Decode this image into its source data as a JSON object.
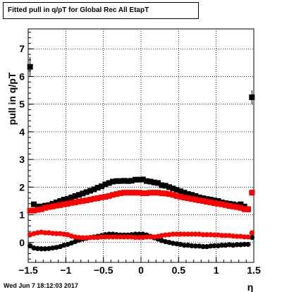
{
  "title": "Fitted pull in q/pT for Global Rec All EtapT",
  "timestamp": "Wed Jun  7 18:12:03 2017",
  "chart_data": {
    "type": "scatter",
    "title": "Fitted pull in q/pT for Global Rec All EtapT",
    "xlabel": "η",
    "ylabel": "pull in q/pT",
    "xlim": [
      -1.5,
      1.5
    ],
    "ylim": [
      -0.72,
      7.72
    ],
    "xticks": [
      -1.5,
      -1,
      -0.5,
      0,
      0.5,
      1,
      1.5
    ],
    "xtick_labels": [
      "−1.5",
      "−1",
      "−0.5",
      "0",
      "0.5",
      "1",
      "1.5"
    ],
    "yticks": [
      0,
      1,
      2,
      3,
      4,
      5,
      6,
      7
    ],
    "ytick_labels": [
      "0",
      "1",
      "2",
      "3",
      "4",
      "5",
      "6",
      "7"
    ],
    "grid": true,
    "series": [
      {
        "color": "#000000",
        "marker": "square",
        "x": [
          -1.475,
          -1.425,
          -1.375,
          -1.325,
          -1.275,
          -1.225,
          -1.175,
          -1.125,
          -1.075,
          -1.025,
          -0.975,
          -0.925,
          -0.875,
          -0.825,
          -0.775,
          -0.725,
          -0.675,
          -0.625,
          -0.575,
          -0.525,
          -0.475,
          -0.425,
          -0.375,
          -0.325,
          -0.275,
          -0.225,
          -0.175,
          -0.125,
          -0.075,
          -0.025,
          0.025,
          0.075,
          0.125,
          0.175,
          0.225,
          0.275,
          0.325,
          0.375,
          0.425,
          0.475,
          0.525,
          0.575,
          0.625,
          0.675,
          0.725,
          0.775,
          0.825,
          0.875,
          0.925,
          0.975,
          1.025,
          1.075,
          1.125,
          1.175,
          1.225,
          1.275,
          1.325,
          1.375,
          1.425,
          1.475
        ],
        "y": [
          6.35,
          1.38,
          1.3,
          1.3,
          1.33,
          1.35,
          1.4,
          1.45,
          1.5,
          1.55,
          1.58,
          1.63,
          1.68,
          1.72,
          1.77,
          1.82,
          1.87,
          1.92,
          1.98,
          2.03,
          2.1,
          2.15,
          2.2,
          2.22,
          2.22,
          2.23,
          2.22,
          2.23,
          2.27,
          2.27,
          2.28,
          2.22,
          2.2,
          2.17,
          2.15,
          2.07,
          2.05,
          2.0,
          1.95,
          1.9,
          1.85,
          1.8,
          1.75,
          1.72,
          1.68,
          1.63,
          1.6,
          1.57,
          1.55,
          1.52,
          1.5,
          1.45,
          1.42,
          1.4,
          1.38,
          1.35,
          1.38,
          1.3,
          1.2,
          5.25
        ],
        "yerr": [
          0.35,
          0.08,
          0.05,
          0.04,
          0.04,
          0.04,
          0.03,
          0.03,
          0.03,
          0.03,
          0.03,
          0.03,
          0.03,
          0.03,
          0.03,
          0.03,
          0.03,
          0.03,
          0.03,
          0.03,
          0.03,
          0.03,
          0.03,
          0.03,
          0.03,
          0.03,
          0.03,
          0.03,
          0.03,
          0.03,
          0.03,
          0.03,
          0.03,
          0.03,
          0.03,
          0.03,
          0.03,
          0.03,
          0.03,
          0.03,
          0.03,
          0.03,
          0.03,
          0.03,
          0.03,
          0.03,
          0.03,
          0.03,
          0.03,
          0.03,
          0.03,
          0.03,
          0.03,
          0.03,
          0.03,
          0.04,
          0.04,
          0.05,
          0.08,
          0.25
        ]
      },
      {
        "color": "#ff0000",
        "marker": "square",
        "x": [
          -1.475,
          -1.425,
          -1.375,
          -1.325,
          -1.275,
          -1.225,
          -1.175,
          -1.125,
          -1.075,
          -1.025,
          -0.975,
          -0.925,
          -0.875,
          -0.825,
          -0.775,
          -0.725,
          -0.675,
          -0.625,
          -0.575,
          -0.525,
          -0.475,
          -0.425,
          -0.375,
          -0.325,
          -0.275,
          -0.225,
          -0.175,
          -0.125,
          -0.075,
          -0.025,
          0.025,
          0.075,
          0.125,
          0.175,
          0.225,
          0.275,
          0.325,
          0.375,
          0.425,
          0.475,
          0.525,
          0.575,
          0.625,
          0.675,
          0.725,
          0.775,
          0.825,
          0.875,
          0.925,
          0.975,
          1.025,
          1.075,
          1.125,
          1.175,
          1.225,
          1.275,
          1.325,
          1.375,
          1.425,
          1.475
        ],
        "y": [
          1.15,
          1.15,
          1.18,
          1.2,
          1.25,
          1.28,
          1.3,
          1.33,
          1.35,
          1.38,
          1.4,
          1.43,
          1.45,
          1.48,
          1.5,
          1.52,
          1.55,
          1.58,
          1.6,
          1.63,
          1.65,
          1.68,
          1.72,
          1.75,
          1.78,
          1.8,
          1.8,
          1.8,
          1.8,
          1.8,
          1.78,
          1.78,
          1.8,
          1.8,
          1.8,
          1.78,
          1.77,
          1.75,
          1.72,
          1.68,
          1.65,
          1.62,
          1.6,
          1.57,
          1.55,
          1.52,
          1.5,
          1.47,
          1.45,
          1.42,
          1.4,
          1.38,
          1.35,
          1.32,
          1.3,
          1.28,
          1.25,
          1.2,
          1.2,
          1.8
        ],
        "yerr": [
          0.06,
          0.04,
          0.03,
          0.03,
          0.03,
          0.03,
          0.03,
          0.03,
          0.03,
          0.03,
          0.03,
          0.03,
          0.03,
          0.03,
          0.03,
          0.03,
          0.03,
          0.03,
          0.03,
          0.03,
          0.03,
          0.03,
          0.03,
          0.03,
          0.03,
          0.03,
          0.03,
          0.03,
          0.03,
          0.03,
          0.03,
          0.03,
          0.03,
          0.03,
          0.03,
          0.03,
          0.03,
          0.03,
          0.03,
          0.03,
          0.03,
          0.03,
          0.03,
          0.03,
          0.03,
          0.03,
          0.03,
          0.03,
          0.03,
          0.03,
          0.03,
          0.03,
          0.03,
          0.03,
          0.03,
          0.03,
          0.03,
          0.03,
          0.04,
          0.1
        ]
      },
      {
        "color": "#000000",
        "marker": "circle",
        "x": [
          -1.475,
          -1.425,
          -1.375,
          -1.325,
          -1.275,
          -1.225,
          -1.175,
          -1.125,
          -1.075,
          -1.025,
          -0.975,
          -0.925,
          -0.875,
          -0.825,
          -0.775,
          -0.725,
          -0.675,
          -0.625,
          -0.575,
          -0.525,
          -0.475,
          -0.425,
          -0.375,
          -0.325,
          -0.275,
          -0.225,
          -0.175,
          -0.125,
          -0.075,
          -0.025,
          0.025,
          0.075,
          0.125,
          0.175,
          0.225,
          0.275,
          0.325,
          0.375,
          0.425,
          0.475,
          0.525,
          0.575,
          0.625,
          0.675,
          0.725,
          0.775,
          0.825,
          0.875,
          0.925,
          0.975,
          1.025,
          1.075,
          1.125,
          1.175,
          1.225,
          1.275,
          1.325,
          1.375,
          1.425,
          1.475
        ],
        "y": [
          -0.12,
          -0.2,
          -0.22,
          -0.23,
          -0.23,
          -0.22,
          -0.2,
          -0.18,
          -0.15,
          -0.1,
          -0.07,
          -0.02,
          0.03,
          0.08,
          0.12,
          0.15,
          0.18,
          0.2,
          0.22,
          0.25,
          0.28,
          0.3,
          0.3,
          0.28,
          0.27,
          0.27,
          0.27,
          0.28,
          0.3,
          0.3,
          0.3,
          0.27,
          0.22,
          0.17,
          0.12,
          0.07,
          0.03,
          0.0,
          -0.03,
          -0.05,
          -0.07,
          -0.1,
          -0.1,
          -0.12,
          -0.13,
          -0.13,
          -0.15,
          -0.15,
          -0.13,
          -0.12,
          -0.12,
          -0.1,
          -0.1,
          -0.08,
          -0.1,
          -0.08,
          -0.08,
          -0.07,
          -0.07,
          0.18
        ],
        "yerr": [
          0.05,
          0.04,
          0.03,
          0.03,
          0.03,
          0.03,
          0.03,
          0.03,
          0.03,
          0.03,
          0.03,
          0.03,
          0.03,
          0.03,
          0.03,
          0.03,
          0.03,
          0.03,
          0.03,
          0.03,
          0.03,
          0.03,
          0.03,
          0.03,
          0.03,
          0.03,
          0.03,
          0.03,
          0.03,
          0.03,
          0.03,
          0.03,
          0.03,
          0.03,
          0.03,
          0.03,
          0.03,
          0.03,
          0.03,
          0.03,
          0.03,
          0.03,
          0.03,
          0.03,
          0.03,
          0.03,
          0.03,
          0.03,
          0.03,
          0.03,
          0.03,
          0.03,
          0.03,
          0.03,
          0.03,
          0.03,
          0.03,
          0.03,
          0.03,
          0.06
        ]
      },
      {
        "color": "#ff0000",
        "marker": "circle",
        "x": [
          -1.475,
          -1.425,
          -1.375,
          -1.325,
          -1.275,
          -1.225,
          -1.175,
          -1.125,
          -1.075,
          -1.025,
          -0.975,
          -0.925,
          -0.875,
          -0.825,
          -0.775,
          -0.725,
          -0.675,
          -0.625,
          -0.575,
          -0.525,
          -0.475,
          -0.425,
          -0.375,
          -0.325,
          -0.275,
          -0.225,
          -0.175,
          -0.125,
          -0.075,
          -0.025,
          0.025,
          0.075,
          0.125,
          0.175,
          0.225,
          0.275,
          0.325,
          0.375,
          0.425,
          0.475,
          0.525,
          0.575,
          0.625,
          0.675,
          0.725,
          0.775,
          0.825,
          0.875,
          0.925,
          0.975,
          1.025,
          1.075,
          1.125,
          1.175,
          1.225,
          1.275,
          1.325,
          1.375,
          1.425,
          1.475
        ],
        "y": [
          0.28,
          0.32,
          0.35,
          0.37,
          0.35,
          0.35,
          0.33,
          0.32,
          0.32,
          0.3,
          0.28,
          0.23,
          0.2,
          0.18,
          0.17,
          0.17,
          0.18,
          0.18,
          0.18,
          0.2,
          0.2,
          0.2,
          0.2,
          0.2,
          0.2,
          0.2,
          0.2,
          0.2,
          0.18,
          0.18,
          0.18,
          0.2,
          0.2,
          0.2,
          0.22,
          0.25,
          0.27,
          0.28,
          0.3,
          0.3,
          0.3,
          0.3,
          0.3,
          0.3,
          0.3,
          0.3,
          0.28,
          0.28,
          0.28,
          0.27,
          0.27,
          0.25,
          0.25,
          0.25,
          0.23,
          0.22,
          0.22,
          0.2,
          0.2,
          0.35
        ],
        "yerr": [
          0.04,
          0.03,
          0.03,
          0.03,
          0.03,
          0.03,
          0.03,
          0.03,
          0.03,
          0.03,
          0.03,
          0.03,
          0.03,
          0.03,
          0.03,
          0.03,
          0.03,
          0.03,
          0.03,
          0.03,
          0.03,
          0.03,
          0.03,
          0.03,
          0.03,
          0.03,
          0.03,
          0.03,
          0.03,
          0.03,
          0.03,
          0.03,
          0.03,
          0.03,
          0.03,
          0.03,
          0.03,
          0.03,
          0.03,
          0.03,
          0.03,
          0.03,
          0.03,
          0.03,
          0.03,
          0.03,
          0.03,
          0.03,
          0.03,
          0.03,
          0.03,
          0.03,
          0.03,
          0.03,
          0.03,
          0.03,
          0.03,
          0.03,
          0.03,
          0.05
        ]
      }
    ]
  }
}
